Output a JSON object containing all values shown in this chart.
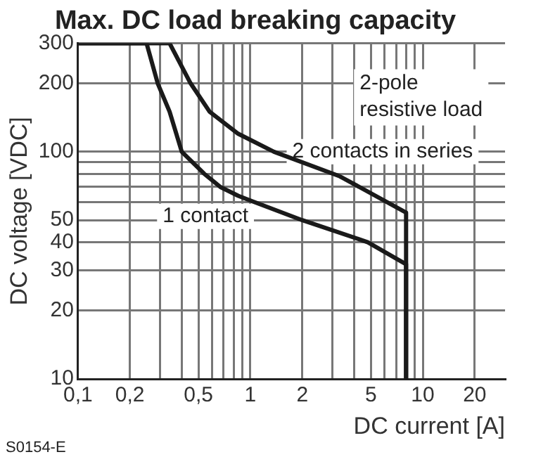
{
  "chart_data": {
    "type": "line",
    "title": "Max. DC load breaking capacity",
    "xlabel": "DC current [A]",
    "ylabel": "DC voltage [VDC]",
    "log": "xy",
    "xlim": [
      0.1,
      30
    ],
    "ylim": [
      10,
      300
    ],
    "xticks": [
      {
        "value": 0.1,
        "label": "0,1"
      },
      {
        "value": 0.2,
        "label": "0,2"
      },
      {
        "value": 0.3,
        "label": null
      },
      {
        "value": 0.4,
        "label": null
      },
      {
        "value": 0.5,
        "label": "0,5"
      },
      {
        "value": 0.6,
        "label": null
      },
      {
        "value": 0.7,
        "label": null
      },
      {
        "value": 0.8,
        "label": null
      },
      {
        "value": 0.9,
        "label": null
      },
      1,
      2,
      {
        "value": 3,
        "label": null
      },
      {
        "value": 4,
        "label": null
      },
      5,
      {
        "value": 6,
        "label": null
      },
      {
        "value": 7,
        "label": null
      },
      {
        "value": 8,
        "label": null
      },
      {
        "value": 9,
        "label": null
      },
      10,
      20
    ],
    "yticks": [
      10,
      20,
      30,
      40,
      50,
      {
        "value": 60,
        "label": null
      },
      {
        "value": 70,
        "label": null
      },
      {
        "value": 80,
        "label": null
      },
      {
        "value": 90,
        "label": null
      },
      100,
      200,
      300
    ],
    "grid": true,
    "legend": false,
    "marker": "none",
    "line_style": "solid",
    "series": [
      {
        "name": "1 contact",
        "color": "#1a1a1a",
        "x": [
          0.1,
          0.25,
          0.29,
          0.34,
          0.4,
          0.54,
          0.67,
          0.85,
          1,
          2,
          4.8,
          8,
          8
        ],
        "values": [
          300,
          300,
          200,
          150,
          100,
          80,
          70,
          64,
          61,
          50,
          40,
          32,
          10
        ]
      },
      {
        "name": "2 contacts in series",
        "color": "#1a1a1a",
        "x": [
          0.1,
          0.34,
          0.45,
          0.58,
          0.85,
          1.37,
          3.3,
          8,
          8
        ],
        "values": [
          300,
          300,
          200,
          150,
          120,
          100,
          78,
          54,
          10
        ]
      }
    ],
    "annotations": [
      "2-pole\nresistive load",
      "S0154-E"
    ]
  }
}
